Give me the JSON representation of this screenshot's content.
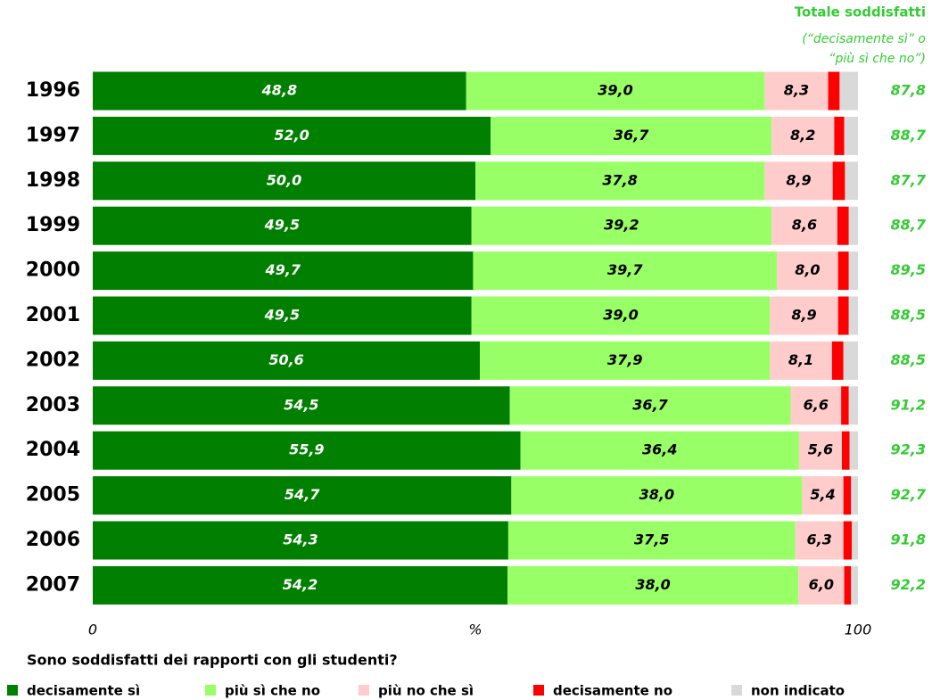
{
  "chart_data": {
    "type": "stacked-bar-horizontal",
    "title": "Sono soddisfatti dei rapporti con gli studenti?",
    "categories": [
      "1996",
      "1997",
      "1998",
      "1999",
      "2000",
      "2001",
      "2002",
      "2003",
      "2004",
      "2005",
      "2006",
      "2007"
    ],
    "series": [
      {
        "name": "decisamente sì",
        "color": "#007f00",
        "label_color": "#ffffff",
        "values": [
          48.8,
          52.0,
          50.0,
          49.5,
          49.7,
          49.5,
          50.6,
          54.5,
          55.9,
          54.7,
          54.3,
          54.2
        ],
        "value_labels": [
          "48,8",
          "52,0",
          "50,0",
          "49,5",
          "49,7",
          "49,5",
          "50,6",
          "54,5",
          "55,9",
          "54,7",
          "54,3",
          "54,2"
        ]
      },
      {
        "name": "più sì che no",
        "color": "#99ff66",
        "label_color": "#000000",
        "values": [
          39.0,
          36.7,
          37.8,
          39.2,
          39.7,
          39.0,
          37.9,
          36.7,
          36.4,
          38.0,
          37.5,
          38.0
        ],
        "value_labels": [
          "39,0",
          "36,7",
          "37,8",
          "39,2",
          "39,7",
          "39,0",
          "37,9",
          "36,7",
          "36,4",
          "38,0",
          "37,5",
          "38,0"
        ]
      },
      {
        "name": "più no che sì",
        "color": "#ffcccc",
        "label_color": "#000000",
        "values": [
          8.3,
          8.2,
          8.9,
          8.6,
          8.0,
          8.9,
          8.1,
          6.6,
          5.6,
          5.4,
          6.3,
          6.0
        ],
        "value_labels": [
          "8,3",
          "8,2",
          "8,9",
          "8,6",
          "8,0",
          "8,9",
          "8,1",
          "6,6",
          "5,6",
          "5,4",
          "6,3",
          "6,0"
        ]
      },
      {
        "name": "decisamente no",
        "color": "#ff0000",
        "values": [
          1.5,
          1.3,
          1.6,
          1.5,
          1.4,
          1.4,
          1.5,
          1.0,
          1.0,
          1.0,
          1.1,
          0.9
        ]
      },
      {
        "name": "non indicato",
        "color": "#d9d9d9",
        "values": [
          2.4,
          1.8,
          1.7,
          1.2,
          1.2,
          1.2,
          1.9,
          1.2,
          1.1,
          0.9,
          0.8,
          0.9
        ]
      }
    ],
    "totals": {
      "name": "Totale soddisfatti",
      "note": [
        "(“decisamente sì” o",
        "“più sì che no”)"
      ],
      "color": "#33cc33",
      "values": [
        87.8,
        88.7,
        87.7,
        88.7,
        89.5,
        88.5,
        88.5,
        91.2,
        92.3,
        92.7,
        91.8,
        92.2
      ],
      "value_labels": [
        "87,8",
        "88,7",
        "87,7",
        "88,7",
        "89,5",
        "88,5",
        "88,5",
        "91,2",
        "92,3",
        "92,7",
        "91,8",
        "92,2"
      ]
    },
    "xlim": [
      0,
      100
    ],
    "xticks": [
      0,
      {
        "value": 50,
        "label": "%"
      },
      100
    ],
    "legend": "bottom"
  }
}
